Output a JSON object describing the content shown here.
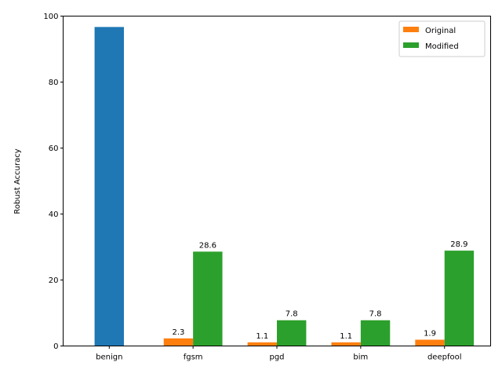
{
  "chart_data": {
    "type": "bar",
    "categories": [
      "benign",
      "fgsm",
      "pgd",
      "bim",
      "deepfool"
    ],
    "ylabel": "Robust Accuracy",
    "ylim": [
      0,
      100
    ],
    "yticks": [
      0,
      20,
      40,
      60,
      80,
      100
    ],
    "benign_value": 96.7,
    "benign_color": "#1f77b4",
    "series": [
      {
        "name": "Original",
        "color": "#ff7f0e",
        "values": [
          null,
          2.3,
          1.1,
          1.1,
          1.9
        ],
        "labels": [
          "",
          "2.3",
          "1.1",
          "1.1",
          "1.9"
        ]
      },
      {
        "name": "Modified",
        "color": "#2ca02c",
        "values": [
          null,
          28.6,
          7.8,
          7.8,
          28.9
        ],
        "labels": [
          "",
          "28.6",
          "7.8",
          "7.8",
          "28.9"
        ]
      }
    ],
    "legend_position": "top-right",
    "grid": false
  }
}
